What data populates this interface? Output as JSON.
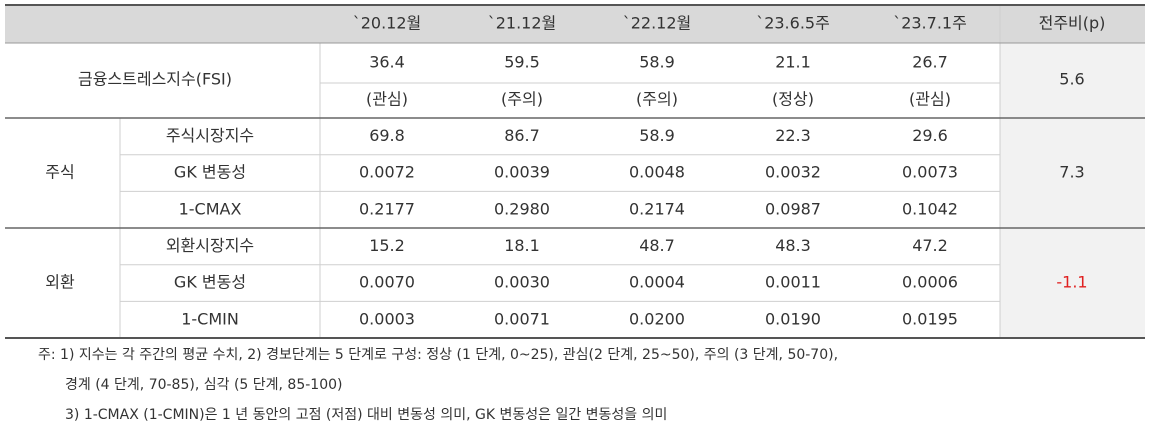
{
  "header": [
    "`20.12월",
    "`21.12월",
    "`22.12월",
    "`23.6.5주",
    "`23.7.1주",
    "전주비(p)"
  ],
  "fsi": {
    "label": "금융스트레스지수(FSI)",
    "values": [
      "36.4",
      "59.5",
      "58.9",
      "21.1",
      "26.7"
    ],
    "statuses": [
      "(관심)",
      "(주의)",
      "(주의)",
      "(정상)",
      "(관심)"
    ],
    "change": "5.6"
  },
  "sections": [
    {
      "name": "주식",
      "change": "7.3",
      "change_color": "#333333",
      "rows": [
        {
          "label": "주식시장지수",
          "values": [
            "69.8",
            "86.7",
            "58.9",
            "22.3",
            "29.6"
          ]
        },
        {
          "label": "GK 변동성",
          "values": [
            "0.0072",
            "0.0039",
            "0.0048",
            "0.0032",
            "0.0073"
          ]
        },
        {
          "label": "1-CMAX",
          "values": [
            "0.2177",
            "0.2980",
            "0.2174",
            "0.0987",
            "0.1042"
          ]
        }
      ]
    },
    {
      "name": "외환",
      "change": "-1.1",
      "change_color": "#e02020",
      "rows": [
        {
          "label": "외환시장지수",
          "values": [
            "15.2",
            "18.1",
            "48.7",
            "48.3",
            "47.2"
          ]
        },
        {
          "label": "GK 변동성",
          "values": [
            "0.0070",
            "0.0030",
            "0.0004",
            "0.0011",
            "0.0006"
          ]
        },
        {
          "label": "1-CMIN",
          "values": [
            "0.0003",
            "0.0071",
            "0.0200",
            "0.0190",
            "0.0195"
          ]
        }
      ]
    }
  ],
  "notes": [
    "주: 1) 지수는 각 주간의 평균 수치, 2) 경보단계는 5 단계로 구성: 정상 (1 단계, 0~25), 관심(2 단계, 25~50), 주의 (3 단계, 50-70),",
    "경계 (4 단계, 70-85), 심각 (5 단계, 85-100)",
    "3) 1-CMAX (1-CMIN)은 1 년 동안의 고점 (저점) 대비 변동성 의미, GK 변동성은 일간 변동성을 의미"
  ]
}
